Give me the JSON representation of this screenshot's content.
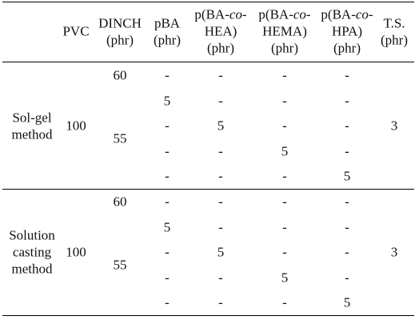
{
  "header": {
    "columns": [
      {
        "lines": [
          [
            "PVC"
          ]
        ]
      },
      {
        "lines": [
          [
            "DINCH"
          ],
          [
            "(phr)"
          ]
        ]
      },
      {
        "lines": [
          [
            "pBA"
          ],
          [
            "(phr)"
          ]
        ]
      },
      {
        "lines": [
          [
            "p(BA-",
            "co",
            "-"
          ],
          [
            "HEA)"
          ],
          [
            "(phr)"
          ]
        ]
      },
      {
        "lines": [
          [
            "p(BA-",
            "co",
            "-"
          ],
          [
            "HEMA)"
          ],
          [
            "(phr)"
          ]
        ]
      },
      {
        "lines": [
          [
            "p(BA-",
            "co",
            "-"
          ],
          [
            "HPA)"
          ],
          [
            "(phr)"
          ]
        ]
      },
      {
        "lines": [
          [
            "T.S."
          ],
          [
            "(phr)"
          ]
        ]
      }
    ]
  },
  "groups": [
    {
      "method": [
        "Sol-gel",
        "method"
      ],
      "pvc": "100",
      "ts": "3",
      "dinch": [
        "60",
        "55"
      ],
      "rows": [
        [
          "-",
          "-",
          "-",
          "-"
        ],
        [
          "5",
          "-",
          "-",
          "-"
        ],
        [
          "-",
          "5",
          "-",
          "-"
        ],
        [
          "-",
          "-",
          "5",
          "-"
        ],
        [
          "-",
          "-",
          "-",
          "5"
        ]
      ]
    },
    {
      "method": [
        "Solution",
        "casting",
        "method"
      ],
      "pvc": "100",
      "ts": "3",
      "dinch": [
        "60",
        "55"
      ],
      "rows": [
        [
          "-",
          "-",
          "-",
          "-"
        ],
        [
          "5",
          "-",
          "-",
          "-"
        ],
        [
          "-",
          "5",
          "-",
          "-"
        ],
        [
          "-",
          "-",
          "5",
          "-"
        ],
        [
          "-",
          "-",
          "-",
          "5"
        ]
      ]
    }
  ]
}
